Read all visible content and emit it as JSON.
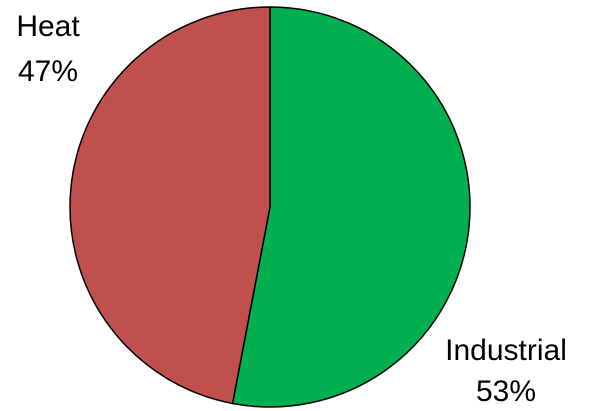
{
  "chart_data": {
    "type": "pie",
    "categories": [
      "Industrial",
      "Heat"
    ],
    "values": [
      53,
      47
    ],
    "value_labels": [
      "53%",
      "47%"
    ],
    "colors": [
      "#00b050",
      "#c0504d"
    ]
  }
}
